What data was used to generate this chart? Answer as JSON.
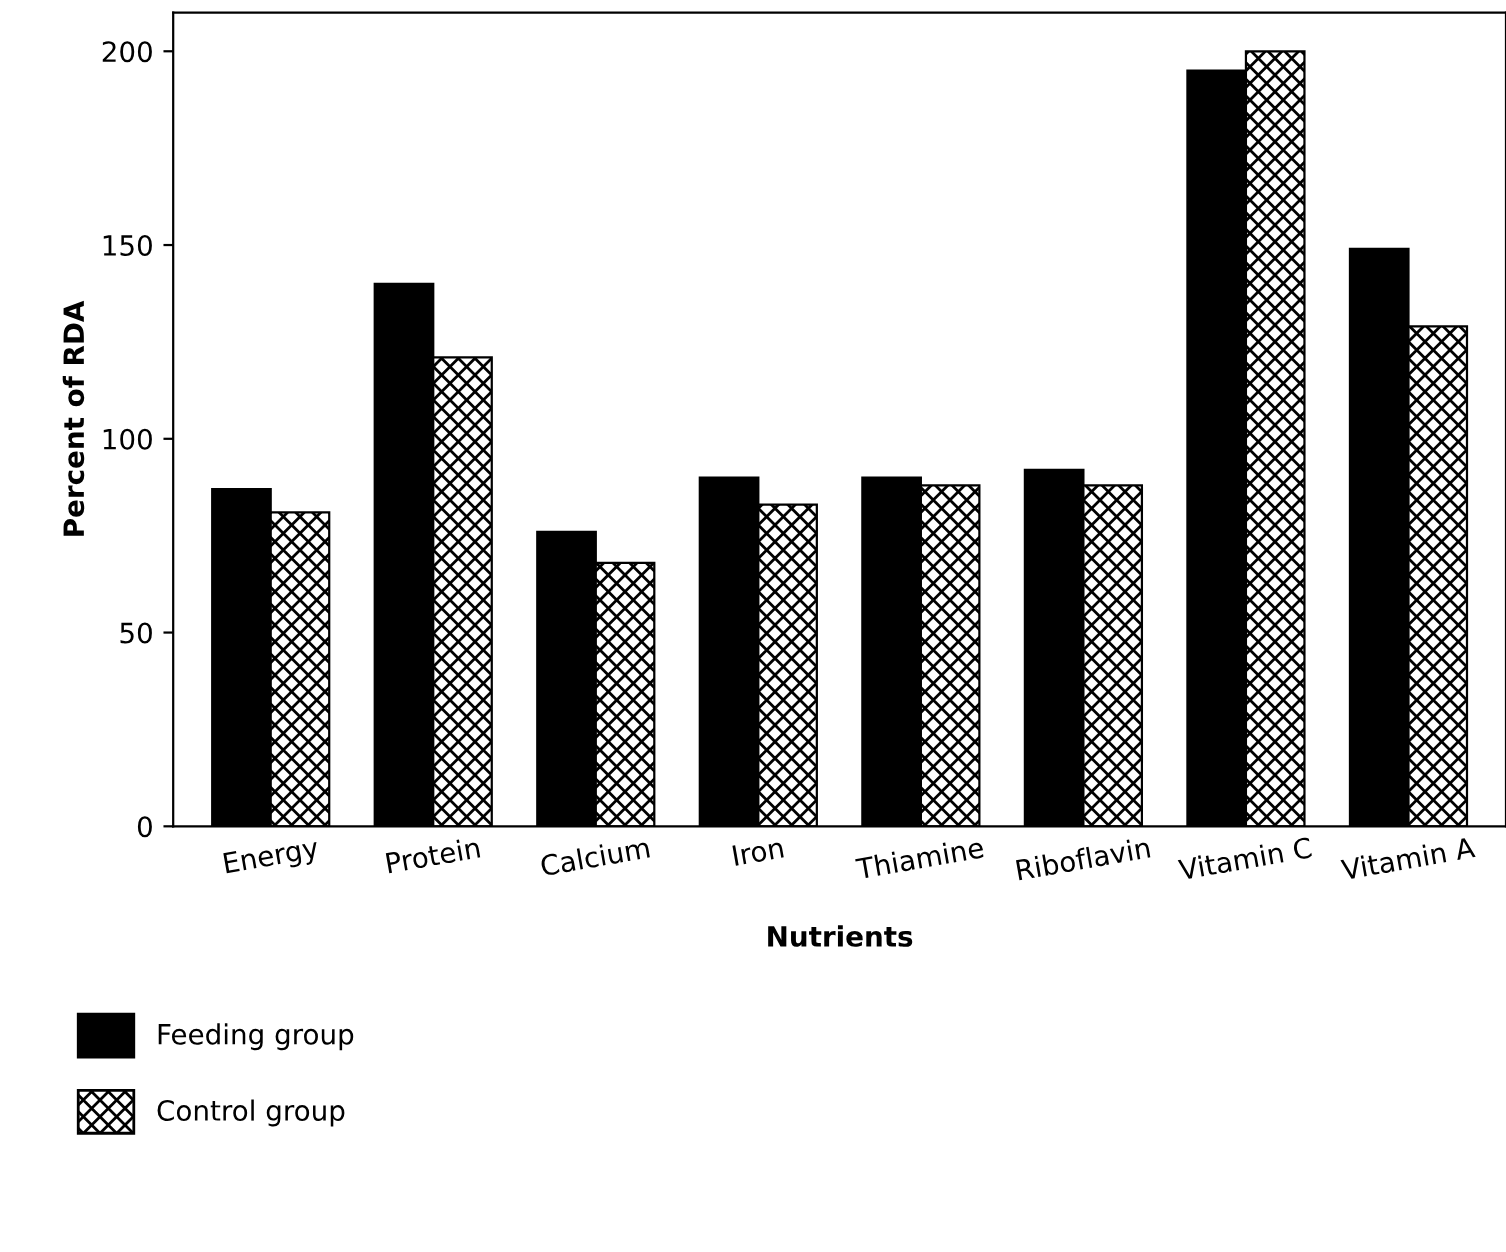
{
  "chart_data": {
    "type": "bar",
    "xlabel": "Nutrients",
    "ylabel": "Percent of RDA",
    "categories": [
      "Energy",
      "Protein",
      "Calcium",
      "Iron",
      "Thiamine",
      "Riboflavin",
      "Vitamin C",
      "Vitamin A"
    ],
    "series": [
      {
        "name": "Feeding group",
        "color": "#000000",
        "values": [
          87,
          140,
          76,
          90,
          90,
          92,
          195,
          149
        ]
      },
      {
        "name": "Control group",
        "color": "#000000",
        "values": [
          81,
          121,
          68,
          83,
          88,
          88,
          200,
          129
        ]
      }
    ],
    "ylim": [
      0,
      210
    ],
    "yticks": [
      0,
      50,
      100,
      150,
      200
    ],
    "grid": false,
    "legend": "bottom left"
  }
}
